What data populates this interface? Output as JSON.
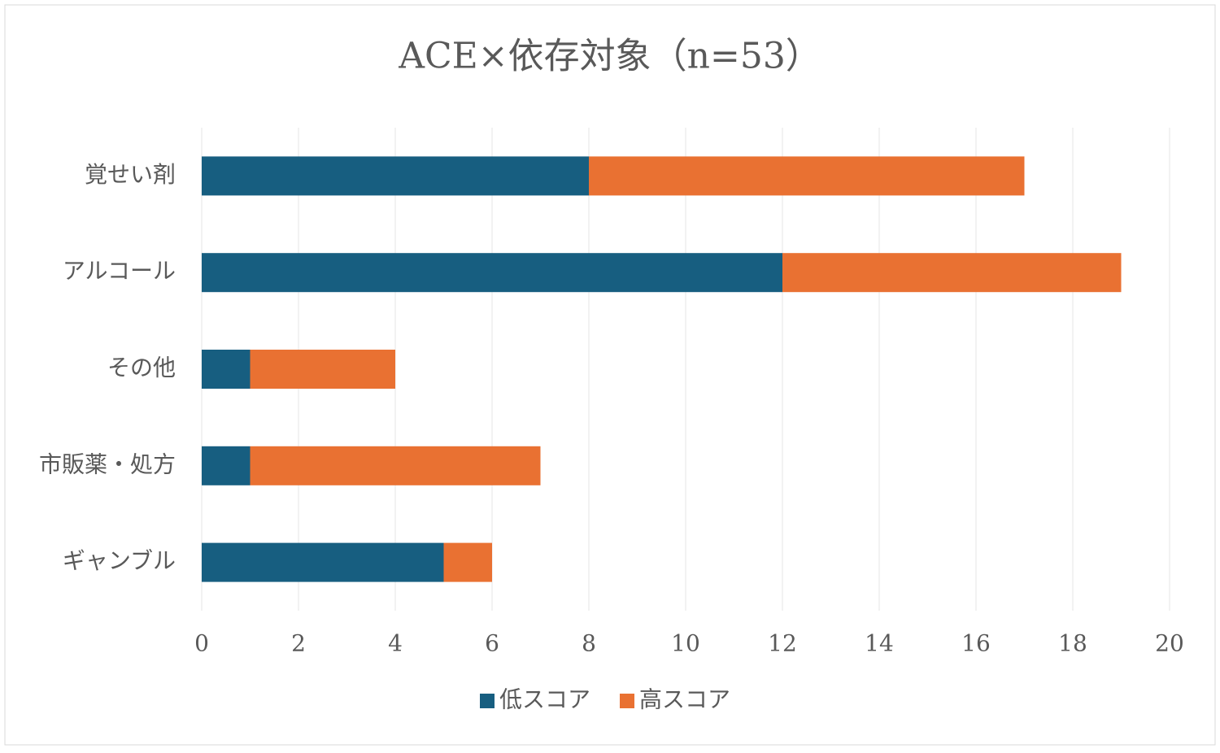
{
  "chart_data": {
    "type": "bar",
    "orientation": "horizontal",
    "stacked": true,
    "title": "ACE×依存対象（n=53）",
    "categories": [
      "覚せい剤",
      "アルコール",
      "その他",
      "市販薬・処方",
      "ギャンブル"
    ],
    "series": [
      {
        "name": "低スコア",
        "color": "#175e80",
        "values": [
          8,
          12,
          1,
          1,
          5
        ]
      },
      {
        "name": "高スコア",
        "color": "#e97132",
        "values": [
          9,
          7,
          3,
          6,
          1
        ]
      }
    ],
    "xlim": [
      0,
      20
    ],
    "xticks": [
      0,
      2,
      4,
      6,
      8,
      10,
      12,
      14,
      16,
      18,
      20
    ],
    "grid": true,
    "legend": "bottom"
  }
}
